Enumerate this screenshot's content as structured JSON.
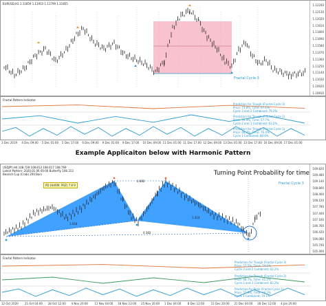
{
  "top_chart": {
    "symbol_line": "EURUSD,H1  1.11859  1.11913  1.11799  1.11855",
    "y_ticks": [
      "1.12240",
      "1.12130",
      "1.12020",
      "1.11910",
      "1.11800",
      "1.11690",
      "1.11580",
      "1.11470",
      "1.11360",
      "1.11250",
      "1.11140",
      "1.11030",
      "1.10920",
      "1.10810"
    ],
    "fractal_label": "Fractal Cycle 3",
    "box_color": "#f7b7c5",
    "panel_title": "Fractal Pattern Indicator",
    "pred_block1": [
      "Prediction for Trough (Fractal Cycle 3)",
      "Price: 73.8%, Time: 67.1%",
      "Cycle 3 and 2 Combined: 79.2%"
    ],
    "pred_block2": [
      "Prediction for Trough (Fractal Cycle 2)",
      "Price: 55.9%, Time: 57.7%",
      "Cycle 2 and 1 Combined: 63.2%"
    ],
    "pred_block3": [
      "Prediction for Trough (Fractal Cycle 1)",
      "Price: 66.7%, Time: 76.4%",
      "Cycle 1 Combined: 80.6%"
    ],
    "x_ticks": [
      "3 Dec 2019",
      "4 Dec 09:00",
      "5 Dec 01:00",
      "5 Dec 17:00",
      "6 Dec 09:00",
      "9 Dec 01:00",
      "9 Dec 17:00",
      "10 Dec 09:00",
      "11 Dec 01:00",
      "11 Dec 17:00",
      "12 Dec 09:00",
      "13 Dec 01:00",
      "13 Dec 17:00",
      "16 Dec 09:00",
      "17 Dec 01:00"
    ]
  },
  "separator": {
    "heading": "Example Applicaiton below with Harmonic Pattern"
  },
  "bottom_chart": {
    "symbol_line": "USDJPY,H4  108.728  108.813  108.617  108.769",
    "pattern_line": "Latest Pattern: 2020.01.06 00:00 Butterfly 108.313",
    "info_line": "Bearish Cup (Crab) 200 Bars",
    "badge": "PD (HARM. PRZ) 7 8 9",
    "overlay_title": "Turning Point Probability for time",
    "fractal_label": "Fractal Cycle 3",
    "ratio_a": "0.880",
    "ratio_b": "1.618",
    "ratio_c": "0.382",
    "ratio_d": "1.414",
    "y_ticks": [
      "109.820",
      "109.480",
      "109.140",
      "108.800",
      "108.460",
      "108.120",
      "107.780",
      "107.440",
      "107.100",
      "106.760",
      "106.420",
      "106.080",
      "105.740",
      "105.400"
    ],
    "pattern_color": "#1e90ff",
    "panel_title": "Fractal Pattern Indicator",
    "pred_block1": [
      "Prediction for Trough (Fractal Cycle 3)",
      "Price: 57.5%, Time: 74.1%",
      "Cycle 3 and 2 Combined: 62.2%"
    ],
    "pred_block2": [
      "Prediction for Trough (Fractal Cycle 2)",
      "Price: 68.7%, Time: 91.2%",
      "Cycle 2 and 1 Combined: 82.2%"
    ],
    "pred_block3": [
      "Prediction for Peak (Fractal Cycle 1)",
      "Price: 57.9%, Time: 48.3%",
      "Cycle 1 Combined: 79.1%"
    ],
    "x_ticks": [
      "12 Oct 2020",
      "21 Oct 04:00",
      "28 Oct 12:00",
      "4 Nov 20:00",
      "11 Nov 04:00",
      "18 Nov 12:00",
      "25 Nov 20:00",
      "1 Dec 04:00",
      "8 Dec 12:00",
      "15 Dec 20:00",
      "21 Dec 04:00",
      "28 Dec 12:00",
      "4 Jan 20:00"
    ]
  },
  "colors": {
    "bar_up": "#222222",
    "line_blue": "#2a9ad0",
    "line_orange": "#e0723a",
    "line_green": "#3a9a5a",
    "arrow_gold": "#e0a020"
  }
}
